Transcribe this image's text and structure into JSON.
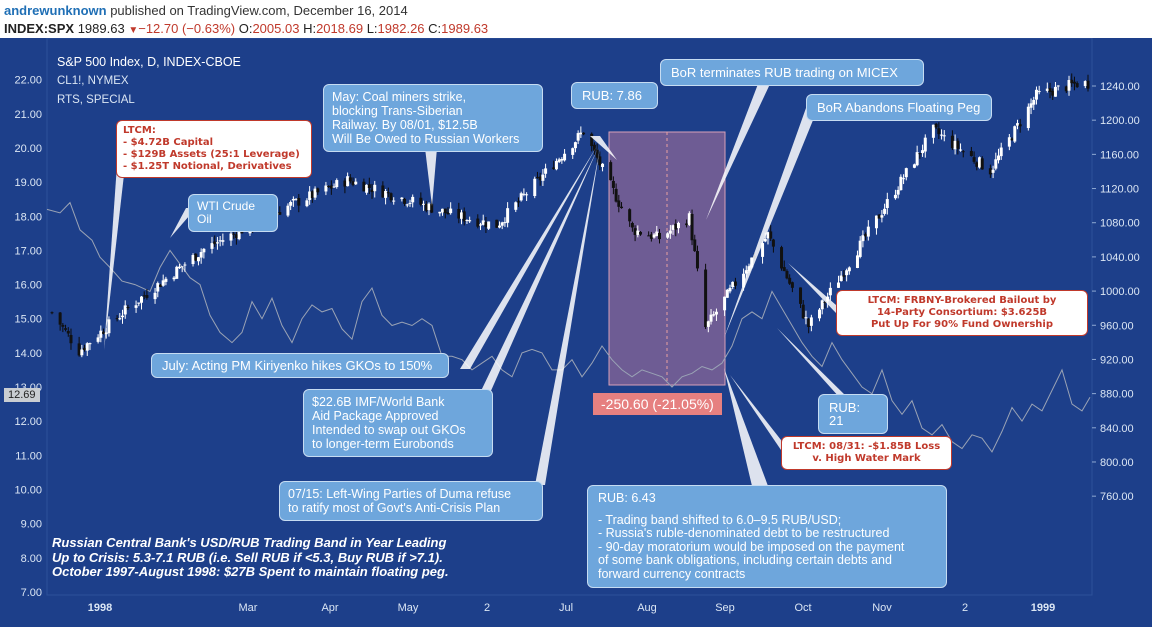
{
  "header": {
    "author": "andrewunknown",
    "published": "published on TradingView.com, December 16, 2014",
    "symbol": "INDEX:SPX",
    "last": "1989.63",
    "change": "−12.70 (−0.63%)",
    "open_label": "O:",
    "open": "2005.03",
    "high_label": "H:",
    "high": "2018.69",
    "low_label": "L:",
    "low": "1982.26",
    "close_label": "C:",
    "close": "1989.63"
  },
  "legend": {
    "main": "S&P 500 Index, D, INDEX-CBOE",
    "series2": "CL1!, NYMEX",
    "series3": "RTS, SPECIAL"
  },
  "current_value_label": "12.69",
  "range_label": "-250.60 (-21.05%)",
  "colors": {
    "background": "#1d3f8a",
    "up": "#ffffff",
    "down": "#111111",
    "oil_line": "#9aa3b5",
    "annotation_blue": "#6ea6dc",
    "loss_red": "#c0392b",
    "range_fill": "#9a6b9a"
  },
  "annotations": {
    "ltcm1": {
      "title": "LTCM:",
      "l1": "- $4.72B Capital",
      "l2": "- $129B Assets (25:1 Leverage)",
      "l3": "- $1.25T Notional, Derivatives"
    },
    "wti": "WTI Crude Oil",
    "may": {
      "l1": "May: Coal miners strike,",
      "l2": "blocking Trans-Siberian",
      "l3": "Railway. By 08/01, $12.5B",
      "l4": "Will Be Owed to Russian Workers"
    },
    "rub786": "RUB: 7.86",
    "micex": "BoR terminates RUB trading on MICEX",
    "peg": "BoR Abandons Floating Peg",
    "july": "July: Acting PM Kiriyenko hikes GKOs to 150%",
    "imf": {
      "l1": "$22.6B IMF/World Bank",
      "l2": "Aid Package Approved",
      "l3": "Intended to swap out GKOs",
      "l4": "to longer-term Eurobonds"
    },
    "duma": {
      "l1": "07/15: Left-Wing Parties of Duma refuse",
      "l2": "to ratify most of Govt's Anti-Crisis Plan"
    },
    "rub643": {
      "t": "RUB: 6.43",
      "l1": "- Trading band shifted to 6.0–9.5 RUB/USD;",
      "l2": "- Russia's ruble-denominated debt to be restructured",
      "l3": "- 90-day moratorium would be imposed on the payment",
      "l4": "of some bank obligations, including certain debts and",
      "l5": "forward currency contracts"
    },
    "rub21": "RUB: 21",
    "ltcm_loss": {
      "l1": "LTCM: 08/31: -$1.85B Loss",
      "l2": "v. High Water Mark"
    },
    "ltcm_bailout": {
      "l1": "LTCM: FRBNY-Brokered Bailout by",
      "l2": "14-Party Consortium: $3.625B",
      "l3": "Put Up For 90% Fund Ownership"
    }
  },
  "footnote": {
    "l1": "Russian Central Bank's USD/RUB Trading Band in Year Leading",
    "l2": "Up to Crisis: 5.3-7.1 RUB (i.e. Sell RUB if <5.3, Buy RUB if >7.1).",
    "l3": "October 1997-August 1998: $27B Spent to maintain floating peg."
  },
  "chart_data": {
    "type": "candlestick",
    "title": "S&P 500 Index, D, INDEX-CBOE",
    "left_axis": {
      "ticks": [
        "22.00",
        "21.00",
        "20.00",
        "19.00",
        "18.00",
        "17.00",
        "16.00",
        "15.00",
        "14.00",
        "13.00",
        "12.00",
        "11.00",
        "10.00",
        "9.00",
        "8.00",
        "7.00"
      ],
      "ylim": [
        6.7,
        22.6
      ]
    },
    "right_axis": {
      "ticks": [
        "1240.00",
        "1200.00",
        "1160.00",
        "1120.00",
        "1080.00",
        "1040.00",
        "1000.00",
        "960.00",
        "920.00",
        "880.00",
        "840.00",
        "800.00",
        "760.00"
      ],
      "ylim": [
        720,
        1264
      ]
    },
    "x_ticks": [
      "1998",
      "Mar",
      "Apr",
      "May",
      "2",
      "Jul",
      "Aug",
      "Sep",
      "Oct",
      "Nov",
      "2",
      "1999"
    ],
    "sp500_approx_path": [
      {
        "date": "1998-01-02",
        "close": 975
      },
      {
        "date": "1998-01-12",
        "close": 930
      },
      {
        "date": "1998-01-30",
        "close": 980
      },
      {
        "date": "1998-02-27",
        "close": 1049
      },
      {
        "date": "1998-03-31",
        "close": 1101
      },
      {
        "date": "1998-04-21",
        "close": 1130
      },
      {
        "date": "1998-05-29",
        "close": 1090
      },
      {
        "date": "1998-06-15",
        "close": 1077
      },
      {
        "date": "1998-07-17",
        "close": 1187
      },
      {
        "date": "1998-08-04",
        "close": 1072
      },
      {
        "date": "1998-08-14",
        "close": 1062
      },
      {
        "date": "1998-08-25",
        "close": 1086
      },
      {
        "date": "1998-08-31",
        "close": 957
      },
      {
        "date": "1998-09-23",
        "close": 1066
      },
      {
        "date": "1998-10-08",
        "close": 959
      },
      {
        "date": "1998-11-23",
        "close": 1188
      },
      {
        "date": "1998-12-14",
        "close": 1141
      },
      {
        "date": "1998-12-31",
        "close": 1229
      },
      {
        "date": "1999-01-15",
        "close": 1243
      }
    ],
    "range_measure": {
      "start": "1998-07-17",
      "end": "1998-08-31",
      "change": -250.6,
      "pct": -21.05
    }
  }
}
